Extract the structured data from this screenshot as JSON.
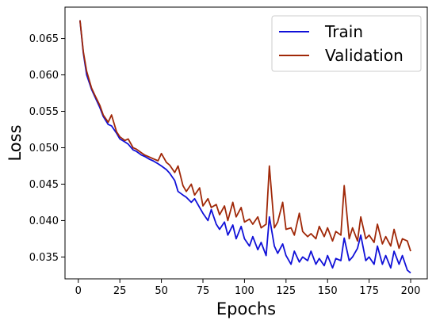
{
  "chart_data": {
    "type": "line",
    "xlabel": "Epochs",
    "ylabel": "Loss",
    "xlim": [
      -8,
      210
    ],
    "ylim": [
      0.032,
      0.0693
    ],
    "xticks": [
      0,
      25,
      50,
      75,
      100,
      125,
      150,
      175,
      200
    ],
    "yticks": [
      0.035,
      0.04,
      0.045,
      0.05,
      0.055,
      0.06,
      0.065
    ],
    "ytick_labels": [
      "0.035",
      "0.040",
      "0.045",
      "0.050",
      "0.055",
      "0.060",
      "0.065"
    ],
    "grid": false,
    "legend_position": "top-right",
    "series": [
      {
        "name": "Train",
        "color": "#1010d8",
        "x": [
          1,
          3,
          5,
          8,
          10,
          13,
          15,
          18,
          20,
          23,
          25,
          28,
          30,
          33,
          35,
          38,
          40,
          43,
          45,
          48,
          50,
          53,
          55,
          58,
          60,
          63,
          65,
          68,
          70,
          73,
          75,
          78,
          80,
          83,
          85,
          88,
          90,
          93,
          95,
          98,
          100,
          103,
          105,
          108,
          110,
          113,
          115,
          118,
          120,
          123,
          125,
          128,
          130,
          133,
          135,
          138,
          140,
          143,
          145,
          148,
          150,
          153,
          155,
          158,
          160,
          163,
          165,
          168,
          170,
          173,
          175,
          178,
          180,
          183,
          185,
          188,
          190,
          193,
          195,
          198,
          200
        ],
        "y": [
          0.0675,
          0.063,
          0.06,
          0.058,
          0.057,
          0.0555,
          0.0543,
          0.0532,
          0.053,
          0.052,
          0.0512,
          0.0508,
          0.0505,
          0.0497,
          0.0495,
          0.049,
          0.0488,
          0.0484,
          0.0482,
          0.0478,
          0.0475,
          0.047,
          0.0465,
          0.0455,
          0.044,
          0.0435,
          0.0432,
          0.0425,
          0.043,
          0.0418,
          0.041,
          0.04,
          0.0415,
          0.0395,
          0.0388,
          0.0398,
          0.038,
          0.0394,
          0.0375,
          0.0392,
          0.0375,
          0.0365,
          0.0378,
          0.036,
          0.037,
          0.0352,
          0.0405,
          0.0365,
          0.0355,
          0.0368,
          0.0352,
          0.034,
          0.0358,
          0.0343,
          0.035,
          0.0345,
          0.0358,
          0.034,
          0.0348,
          0.0338,
          0.0352,
          0.0335,
          0.0348,
          0.0345,
          0.0376,
          0.0345,
          0.035,
          0.0362,
          0.038,
          0.0345,
          0.035,
          0.034,
          0.0365,
          0.034,
          0.0352,
          0.0335,
          0.0358,
          0.034,
          0.0352,
          0.0332,
          0.0328
        ]
      },
      {
        "name": "Validation",
        "color": "#a02808",
        "x": [
          1,
          3,
          5,
          8,
          10,
          13,
          15,
          18,
          20,
          23,
          25,
          28,
          30,
          33,
          35,
          38,
          40,
          43,
          45,
          48,
          50,
          53,
          55,
          58,
          60,
          63,
          65,
          68,
          70,
          73,
          75,
          78,
          80,
          83,
          85,
          88,
          90,
          93,
          95,
          98,
          100,
          103,
          105,
          108,
          110,
          113,
          115,
          118,
          120,
          123,
          125,
          128,
          130,
          133,
          135,
          138,
          140,
          143,
          145,
          148,
          150,
          153,
          155,
          158,
          160,
          163,
          165,
          168,
          170,
          173,
          175,
          178,
          180,
          183,
          185,
          188,
          190,
          193,
          195,
          198,
          200
        ],
        "y": [
          0.0675,
          0.0632,
          0.0605,
          0.0582,
          0.0572,
          0.0558,
          0.0545,
          0.0535,
          0.0545,
          0.0522,
          0.0515,
          0.051,
          0.0512,
          0.05,
          0.0498,
          0.0493,
          0.049,
          0.0487,
          0.0485,
          0.0482,
          0.0492,
          0.048,
          0.0476,
          0.0466,
          0.0475,
          0.0448,
          0.044,
          0.045,
          0.0435,
          0.0445,
          0.042,
          0.043,
          0.0418,
          0.0422,
          0.0408,
          0.042,
          0.04,
          0.0425,
          0.0405,
          0.0418,
          0.0398,
          0.0402,
          0.0395,
          0.0405,
          0.039,
          0.0395,
          0.0475,
          0.039,
          0.0398,
          0.0425,
          0.0388,
          0.039,
          0.038,
          0.041,
          0.0385,
          0.0378,
          0.0382,
          0.0375,
          0.0392,
          0.0378,
          0.039,
          0.0372,
          0.0385,
          0.038,
          0.0448,
          0.0375,
          0.039,
          0.0372,
          0.0405,
          0.0375,
          0.038,
          0.037,
          0.0395,
          0.0368,
          0.0378,
          0.0365,
          0.0388,
          0.0362,
          0.0375,
          0.0372,
          0.0358
        ]
      }
    ]
  }
}
